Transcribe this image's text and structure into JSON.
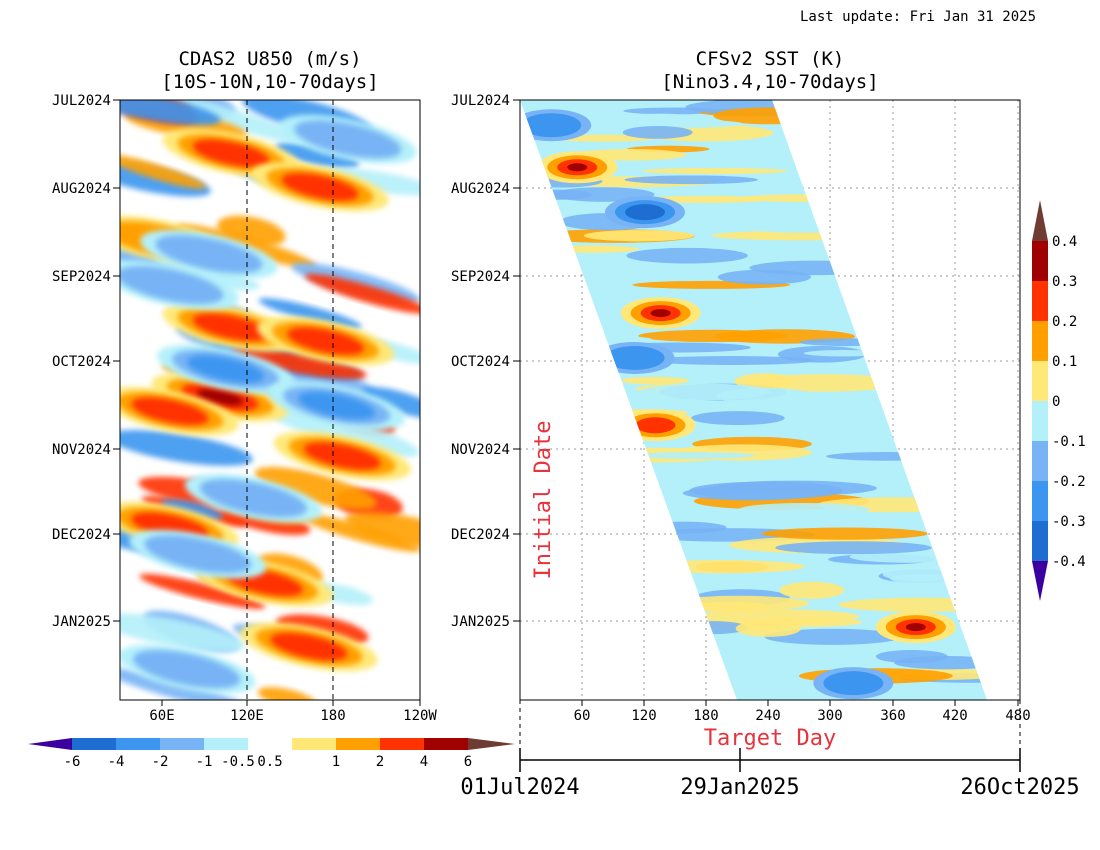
{
  "last_update": "Last update: Fri Jan 31 2025",
  "chart_data": [
    {
      "type": "heatmap",
      "title": "CDAS2 U850 (m/s)",
      "subtitle": "[10S-10N,10-70days]",
      "x_tick_labels": [
        "60E",
        "120E",
        "180",
        "120W"
      ],
      "y_tick_labels": [
        "JUL2024",
        "AUG2024",
        "SEP2024",
        "OCT2024",
        "NOV2024",
        "DEC2024",
        "JAN2025"
      ],
      "reference_lines": [
        "120E",
        "180"
      ],
      "colorbar": {
        "labels": [
          "-6",
          "-4",
          "-2",
          "-1",
          "-0.5",
          "0.5",
          "1",
          "2",
          "4",
          "6"
        ],
        "colors": [
          "#3c00a0",
          "#1e6ed2",
          "#3c96f0",
          "#78b4f5",
          "#b4f0fa",
          "#ffffff",
          "#ffe878",
          "#ffa000",
          "#ff3200",
          "#a00000",
          "#6e3c32"
        ]
      },
      "features": [
        {
          "date": "2024-07-20",
          "lon": 130,
          "value": 3
        },
        {
          "date": "2024-08-01",
          "lon": 210,
          "value": 3
        },
        {
          "date": "2024-08-20",
          "lon": 65,
          "value": 2
        },
        {
          "date": "2024-09-20",
          "lon": 130,
          "value": 3
        },
        {
          "date": "2024-09-25",
          "lon": 215,
          "value": 3
        },
        {
          "date": "2024-10-15",
          "lon": 120,
          "value": 5
        },
        {
          "date": "2024-10-20",
          "lon": 75,
          "value": 3
        },
        {
          "date": "2024-11-05",
          "lon": 230,
          "value": 3
        },
        {
          "date": "2024-11-30",
          "lon": 75,
          "value": 4
        },
        {
          "date": "2024-12-20",
          "lon": 160,
          "value": 3
        },
        {
          "date": "2025-01-12",
          "lon": 200,
          "value": 3
        },
        {
          "date": "2024-07-15",
          "lon": 235,
          "value": -2
        },
        {
          "date": "2024-08-25",
          "lon": 110,
          "value": -2
        },
        {
          "date": "2024-09-05",
          "lon": 75,
          "value": -2
        },
        {
          "date": "2024-10-05",
          "lon": 125,
          "value": -3
        },
        {
          "date": "2024-10-18",
          "lon": 225,
          "value": -3
        },
        {
          "date": "2024-11-20",
          "lon": 150,
          "value": -2
        },
        {
          "date": "2024-12-10",
          "lon": 100,
          "value": -2
        },
        {
          "date": "2025-01-20",
          "lon": 90,
          "value": -2
        }
      ]
    },
    {
      "type": "heatmap",
      "title": "CFSv2 SST (K)",
      "subtitle": "[Nino3.4,10-70days]",
      "x_tick_labels": [
        "60",
        "120",
        "180",
        "240",
        "300",
        "360",
        "420",
        "480"
      ],
      "y_tick_labels": [
        "JUL2024",
        "AUG2024",
        "SEP2024",
        "OCT2024",
        "NOV2024",
        "DEC2024",
        "JAN2025"
      ],
      "xlabel": "Target Day",
      "ylabel": "Initial Date",
      "date_axis_labels": [
        "01Jul2024",
        "29Jan2025",
        "26Oct2025"
      ],
      "colorbar": {
        "labels": [
          "0.4",
          "0.3",
          "0.2",
          "0.1",
          "0",
          "-0.1",
          "-0.2",
          "-0.3",
          "-0.4"
        ],
        "colors": [
          "#6e3c32",
          "#a00000",
          "#ff3200",
          "#ffa000",
          "#ffe878",
          "#b4f0fa",
          "#78b4f5",
          "#3c96f0",
          "#1e6ed2",
          "#3c00a0"
        ]
      },
      "features": [
        {
          "initial": "2024-07-25",
          "target_day": 55,
          "value": 0.3
        },
        {
          "initial": "2024-09-15",
          "target_day": 135,
          "value": 0.3
        },
        {
          "initial": "2024-10-25",
          "target_day": 130,
          "value": 0.2
        },
        {
          "initial": "2025-01-05",
          "target_day": 380,
          "value": 0.3
        },
        {
          "initial": "2024-08-10",
          "target_day": 120,
          "value": -0.3
        },
        {
          "initial": "2024-07-10",
          "target_day": 30,
          "value": -0.2
        },
        {
          "initial": "2024-10-01",
          "target_day": 110,
          "value": -0.2
        },
        {
          "initial": "2025-01-25",
          "target_day": 320,
          "value": -0.2
        }
      ]
    }
  ]
}
